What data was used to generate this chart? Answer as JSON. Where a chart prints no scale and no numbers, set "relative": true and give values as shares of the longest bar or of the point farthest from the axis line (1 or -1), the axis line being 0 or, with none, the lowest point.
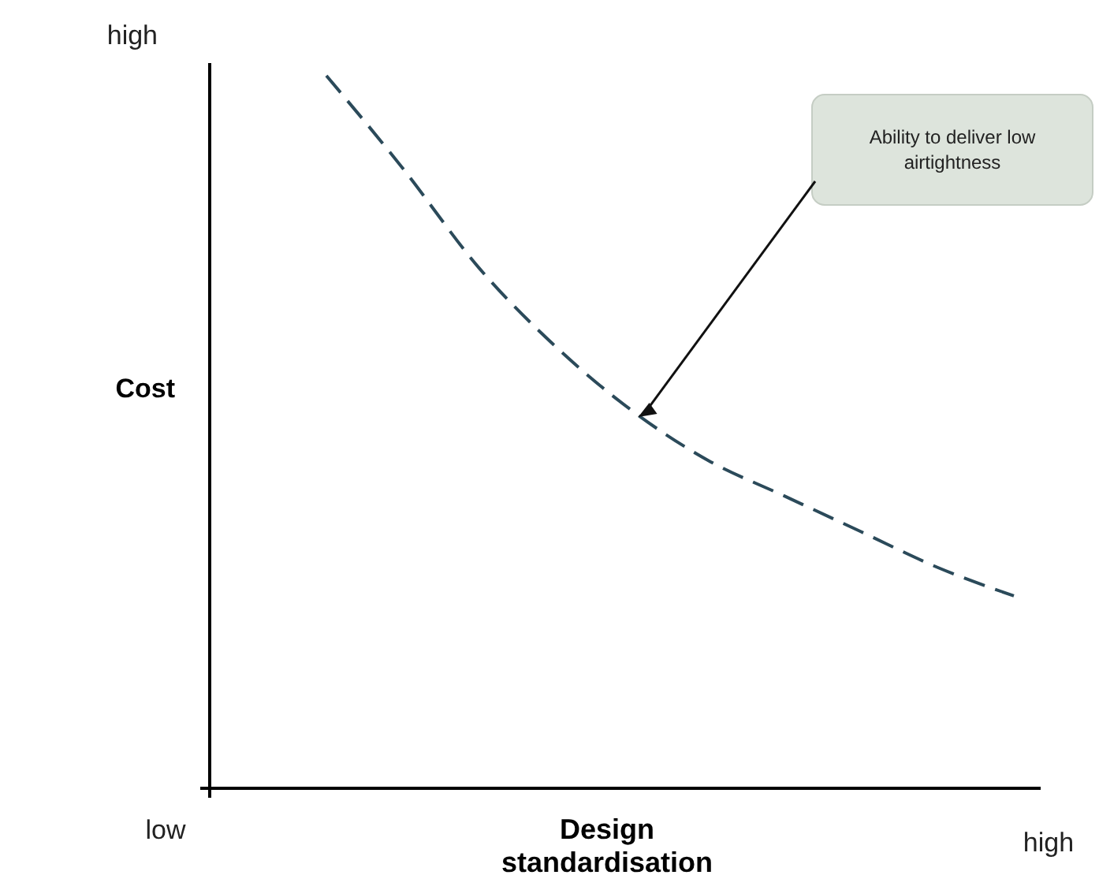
{
  "chart_data": {
    "type": "line",
    "relative": true,
    "xlabel": "Design standardisation",
    "ylabel": "Cost",
    "categories": [
      null,
      null,
      null,
      null,
      null,
      null,
      null,
      null,
      null,
      null
    ],
    "series": [
      {
        "color": "#2b4a5a",
        "values": [
          1,
          0.87,
          0.73,
          0.62,
          0.53,
          0.46,
          0.41,
          0.36,
          0.31,
          0.27
        ],
        "line_style": "dashed"
      }
    ],
    "annotations": [
      "high",
      "low",
      "high",
      "Ability to deliver low airtightness"
    ],
    "marker": "none",
    "grid": false
  }
}
